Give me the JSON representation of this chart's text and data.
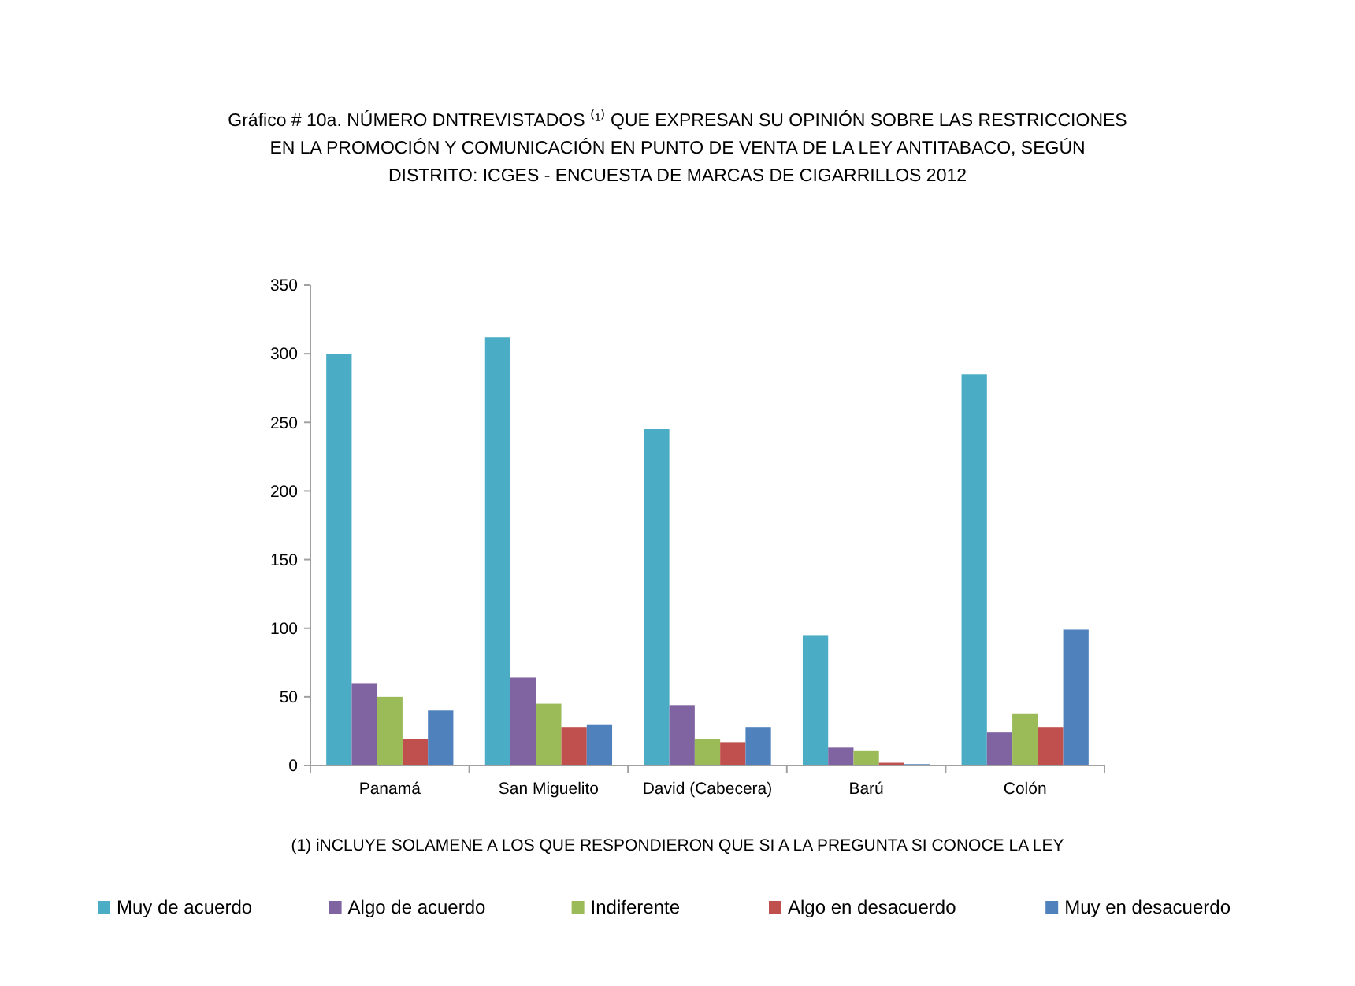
{
  "chart_data": {
    "type": "bar",
    "title": "Gráfico #  10a.  NÚMERO DNTREVISTADOS ⁽¹⁾  QUE EXPRESAN SU OPINIÓN SOBRE LAS RESTRICCIONES\nEN  LA  PROMOCIÓN Y COMUNICACIÓN EN PUNTO DE VENTA DE LA LEY  ANTITABACO, SEGÚN\nDISTRITO: ICGES - ENCUESTA DE MARCAS DE CIGARRILLOS 2012",
    "categories": [
      "Panamá",
      "San Miguelito",
      "David (Cabecera)",
      "Barú",
      "Colón"
    ],
    "series": [
      {
        "name": "Muy de acuerdo",
        "color": "#4bacc6",
        "values": [
          300,
          312,
          245,
          95,
          285
        ]
      },
      {
        "name": "Algo de acuerdo",
        "color": "#8064a2",
        "values": [
          60,
          64,
          44,
          13,
          24
        ]
      },
      {
        "name": "Indiferente",
        "color": "#9bbb59",
        "values": [
          50,
          45,
          19,
          11,
          38
        ]
      },
      {
        "name": "Algo en desacuerdo",
        "color": "#c0504d",
        "values": [
          19,
          28,
          17,
          2,
          28
        ]
      },
      {
        "name": "Muy en desacuerdo",
        "color": "#4f81bd",
        "values": [
          40,
          30,
          28,
          1,
          99
        ]
      }
    ],
    "ylim": [
      0,
      350
    ],
    "yticks": [
      0,
      50,
      100,
      150,
      200,
      250,
      300,
      350
    ],
    "annotations": [
      "(1)  iNCLUYE SOLAMENE A LOS QUE RESPONDIERON QUE SI  A LA PREGUNTA SI CONOCE LA LEY"
    ],
    "legend": "bottom",
    "grid": false
  }
}
